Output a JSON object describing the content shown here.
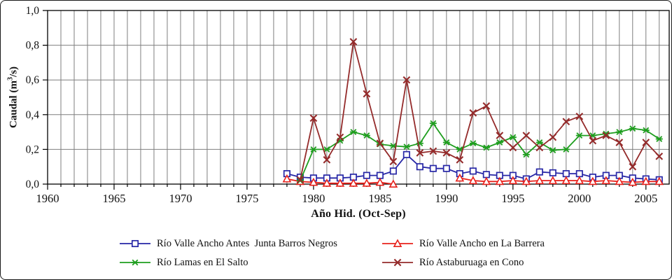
{
  "figure": {
    "background": "#ffffff",
    "border_color": "#1a1a1a",
    "grid_color": "#7f7f7f",
    "axis_color": "#000000",
    "text_color": "#111111"
  },
  "chart_data": {
    "type": "line",
    "title": "",
    "xlabel": "Año Hid. (Oct-Sep)",
    "ylabel": "Caudal (m³/s)",
    "ylabel_parts": {
      "pre": "Caudal (m",
      "sup": "3",
      "post": "/s)"
    },
    "xlim": [
      1960,
      2006.75
    ],
    "ylim": [
      0,
      1.0
    ],
    "grid": {
      "show": true,
      "x_interval_years": 1,
      "y_interval": 0.2
    },
    "x_minor_ticks": {
      "start": 1960,
      "end": 2006,
      "step": 1
    },
    "x_ticks": [
      {
        "value": 1960,
        "label": "1960"
      },
      {
        "value": 1965,
        "label": "1965"
      },
      {
        "value": 1970,
        "label": "1970"
      },
      {
        "value": 1975,
        "label": "1975"
      },
      {
        "value": 1980,
        "label": "1980"
      },
      {
        "value": 1985,
        "label": "1985"
      },
      {
        "value": 1990,
        "label": "1990"
      },
      {
        "value": 1995,
        "label": "1995"
      },
      {
        "value": 2000,
        "label": "2000"
      },
      {
        "value": 2005,
        "label": "2005"
      }
    ],
    "y_ticks": [
      {
        "value": 0.0,
        "label": "0,0"
      },
      {
        "value": 0.2,
        "label": "0,2"
      },
      {
        "value": 0.4,
        "label": "0,4"
      },
      {
        "value": 0.6,
        "label": "0,6"
      },
      {
        "value": 0.8,
        "label": "0,8"
      },
      {
        "value": 1.0,
        "label": "1,0"
      }
    ],
    "x": [
      1978,
      1979,
      1980,
      1981,
      1982,
      1983,
      1984,
      1985,
      1986,
      1987,
      1988,
      1989,
      1990,
      1991,
      1992,
      1993,
      1994,
      1995,
      1996,
      1997,
      1998,
      1999,
      2000,
      2001,
      2002,
      2003,
      2004,
      2005,
      2006
    ],
    "series": [
      {
        "name": "Río Valle Ancho Antes  Junta Barros Negros",
        "color": "#2626a6",
        "marker": "square-open",
        "values": [
          0.06,
          0.04,
          0.035,
          0.035,
          0.035,
          0.04,
          0.05,
          0.05,
          0.075,
          0.17,
          0.1,
          0.09,
          0.09,
          0.06,
          0.075,
          0.055,
          0.05,
          0.05,
          0.03,
          0.07,
          0.065,
          0.06,
          0.06,
          0.04,
          0.05,
          0.05,
          0.035,
          0.03,
          0.025
        ]
      },
      {
        "name": "Río Valle Ancho en La Barrera",
        "color": "#e8221c",
        "marker": "triangle-open",
        "values": [
          0.03,
          0.015,
          0.01,
          0.005,
          0.005,
          0.005,
          0.005,
          0.01,
          0.0,
          null,
          null,
          null,
          null,
          0.035,
          0.02,
          0.015,
          0.015,
          0.02,
          0.015,
          0.02,
          0.02,
          0.02,
          0.02,
          0.015,
          0.02,
          0.015,
          0.01,
          0.015,
          0.015
        ]
      },
      {
        "name": "Río Lamas en El Salto",
        "color": "#1f9e1f",
        "marker": "asterisk",
        "values": [
          null,
          0.02,
          0.2,
          0.2,
          0.25,
          0.3,
          0.28,
          0.23,
          0.22,
          0.215,
          0.235,
          0.35,
          0.24,
          0.2,
          0.235,
          0.21,
          0.24,
          0.27,
          0.17,
          0.24,
          0.195,
          0.2,
          0.28,
          0.28,
          0.29,
          0.3,
          0.32,
          0.31,
          0.26
        ]
      },
      {
        "name": "Río Astaburuaga en Cono",
        "color": "#942b2b",
        "marker": "x",
        "values": [
          null,
          0.025,
          0.38,
          0.14,
          0.27,
          0.82,
          0.52,
          0.235,
          0.13,
          0.6,
          0.18,
          0.19,
          0.18,
          0.14,
          0.41,
          0.45,
          0.28,
          0.21,
          0.28,
          0.21,
          0.27,
          0.36,
          0.39,
          0.25,
          0.28,
          0.24,
          0.1,
          0.24,
          0.16
        ]
      }
    ],
    "legend": {
      "position": "bottom",
      "columns": 2,
      "order": [
        0,
        1,
        2,
        3
      ]
    }
  }
}
